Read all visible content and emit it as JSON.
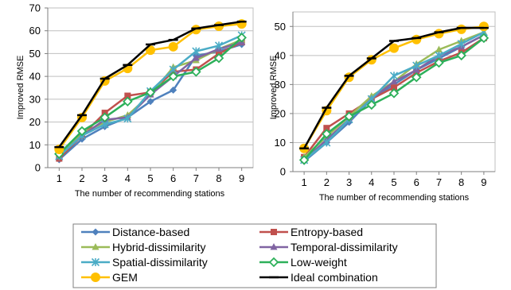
{
  "legend": {
    "entries": [
      {
        "name": "Distance-based"
      },
      {
        "name": "Entropy-based"
      },
      {
        "name": "Hybrid-dissimilarity"
      },
      {
        "name": "Temporal-dissimilarity"
      },
      {
        "name": "Spatial-dissimilarity"
      },
      {
        "name": "Low-weight"
      },
      {
        "name": "GEM"
      },
      {
        "name": "Ideal combination"
      }
    ]
  },
  "chart_data": [
    {
      "type": "line",
      "xlabel": "The number of recommending stations",
      "ylabel": "Improved RMSE",
      "x": [
        1,
        2,
        3,
        4,
        5,
        6,
        7,
        8,
        9
      ],
      "xlim": [
        0.5,
        9.5
      ],
      "ylim": [
        0,
        70
      ],
      "yticks": [
        0,
        10,
        20,
        30,
        40,
        50,
        60,
        70
      ],
      "grid": "horizontal",
      "series": [
        {
          "name": "Distance-based",
          "color": "#4F81BD",
          "marker": "diamond",
          "values": [
            3.5,
            12.5,
            18,
            22,
            29,
            34,
            49,
            51,
            54
          ]
        },
        {
          "name": "Entropy-based",
          "color": "#C0504D",
          "marker": "square",
          "values": [
            4,
            14,
            24,
            31.5,
            33,
            42,
            43,
            50,
            55
          ]
        },
        {
          "name": "Hybrid-dissimilarity",
          "color": "#9BBB59",
          "marker": "triangle",
          "values": [
            5,
            15,
            20,
            23,
            32,
            44,
            47,
            52,
            56
          ]
        },
        {
          "name": "Temporal-dissimilarity",
          "color": "#8064A2",
          "marker": "triangle",
          "values": [
            5,
            14,
            21,
            22,
            32,
            40,
            48,
            52,
            55
          ]
        },
        {
          "name": "Spatial-dissimilarity",
          "color": "#4BACC6",
          "marker": "asterisk",
          "values": [
            5,
            14,
            19,
            21.5,
            33.5,
            43,
            51,
            53.5,
            58
          ]
        },
        {
          "name": "Low-weight",
          "color": "#2DB05A",
          "marker": "diamond-open",
          "values": [
            6,
            16,
            22,
            29,
            33,
            40,
            42,
            48,
            57
          ]
        },
        {
          "name": "GEM",
          "color": "#FFC000",
          "marker": "circle",
          "values": [
            8,
            22,
            38,
            43.5,
            51.5,
            53,
            60.5,
            62,
            63
          ]
        },
        {
          "name": "Ideal combination",
          "color": "#000000",
          "marker": "dash",
          "values": [
            9,
            23,
            39,
            45,
            54,
            56,
            61,
            62.5,
            64
          ]
        }
      ]
    },
    {
      "type": "line",
      "xlabel": "The number of recommending stations",
      "ylabel": "Improved RMSE",
      "x": [
        1,
        2,
        3,
        4,
        5,
        6,
        7,
        8,
        9
      ],
      "xlim": [
        0.5,
        9.5
      ],
      "ylim": [
        0,
        55
      ],
      "yticks": [
        0,
        10,
        20,
        30,
        40,
        50
      ],
      "grid": "horizontal",
      "series": [
        {
          "name": "Distance-based",
          "color": "#4F81BD",
          "marker": "diamond",
          "values": [
            3.5,
            10,
            17,
            25,
            30,
            35,
            39,
            43,
            47
          ]
        },
        {
          "name": "Entropy-based",
          "color": "#C0504D",
          "marker": "square",
          "values": [
            5,
            15,
            20,
            25,
            29,
            34,
            38,
            41,
            46
          ]
        },
        {
          "name": "Hybrid-dissimilarity",
          "color": "#9BBB59",
          "marker": "triangle",
          "values": [
            5,
            12,
            19,
            26,
            31,
            37,
            42,
            45,
            48
          ]
        },
        {
          "name": "Temporal-dissimilarity",
          "color": "#8064A2",
          "marker": "triangle",
          "values": [
            4,
            11,
            18,
            25,
            31,
            35,
            40,
            43,
            47
          ]
        },
        {
          "name": "Spatial-dissimilarity",
          "color": "#4BACC6",
          "marker": "asterisk",
          "values": [
            4,
            10,
            18,
            25,
            33,
            36.5,
            40,
            44,
            48
          ]
        },
        {
          "name": "Low-weight",
          "color": "#2DB05A",
          "marker": "diamond-open",
          "values": [
            4,
            13,
            19,
            23,
            27,
            32.5,
            37.5,
            40,
            46
          ]
        },
        {
          "name": "GEM",
          "color": "#FFC000",
          "marker": "circle",
          "values": [
            8,
            21,
            32.5,
            38.5,
            42.5,
            45.5,
            47.5,
            49,
            50
          ]
        },
        {
          "name": "Ideal combination",
          "color": "#000000",
          "marker": "dash",
          "values": [
            8,
            22,
            33,
            39,
            45,
            46,
            48,
            49.5,
            49.5
          ]
        }
      ]
    }
  ]
}
